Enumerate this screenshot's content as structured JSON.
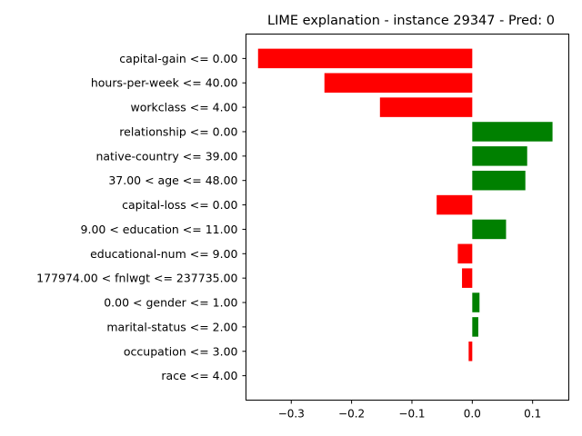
{
  "chart_data": {
    "type": "bar",
    "orientation": "horizontal",
    "title": "LIME explanation - instance 29347 - Pred: 0",
    "xlabel": "",
    "ylabel": "",
    "xlim": [
      -0.375,
      0.16
    ],
    "xticks": [
      -0.3,
      -0.2,
      -0.1,
      0.0,
      0.1
    ],
    "xtick_labels": [
      "−0.3",
      "−0.2",
      "−0.1",
      "0.0",
      "0.1"
    ],
    "grid": false,
    "categories": [
      "capital-gain <= 0.00",
      "hours-per-week <= 40.00",
      "workclass <= 4.00",
      "relationship <= 0.00",
      "native-country <= 39.00",
      "37.00 < age <= 48.00",
      "capital-loss <= 0.00",
      "9.00 < education <= 11.00",
      "educational-num <= 9.00",
      "177974.00 < fnlwgt <= 237735.00",
      "0.00 < gender <= 1.00",
      "marital-status <= 2.00",
      "occupation <= 3.00",
      "race <= 4.00"
    ],
    "values": [
      -0.355,
      -0.245,
      -0.153,
      0.133,
      0.091,
      0.088,
      -0.059,
      0.056,
      -0.024,
      -0.017,
      0.012,
      0.01,
      -0.006,
      0.0
    ],
    "colors": {
      "positive": "#008000",
      "negative": "#ff0000"
    }
  }
}
